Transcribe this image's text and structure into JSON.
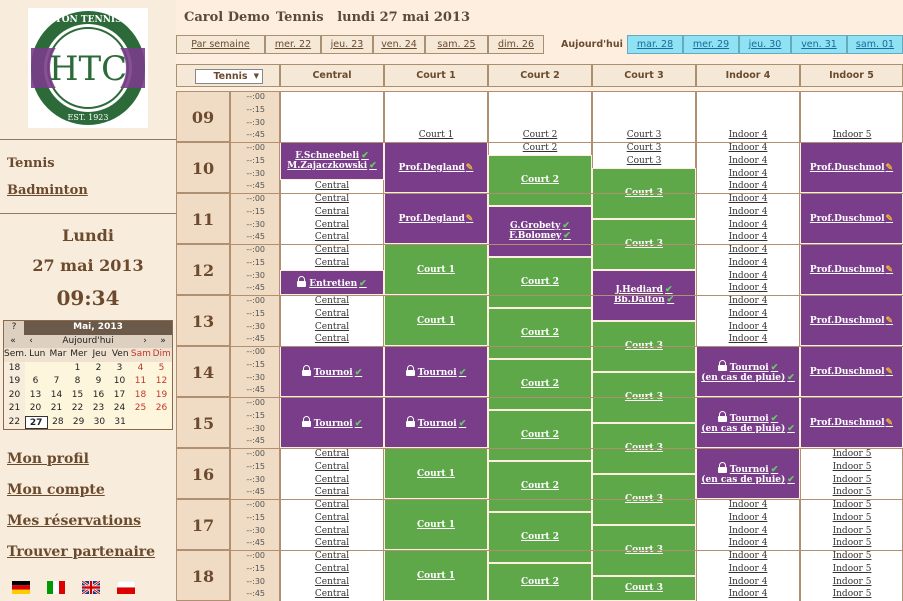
{
  "sidebar": {
    "logo": {
      "top": "HAMPTON TENNIS CLUB",
      "letters": "HTC",
      "est": "EST. 1923"
    },
    "sports": [
      "Tennis",
      "Badminton"
    ],
    "date": {
      "day": "Lundi",
      "full": "27 mai 2013",
      "time": "09:34"
    },
    "links": [
      "Mon profil",
      "Mon compte",
      "Mes réservations",
      "Trouver partenaire"
    ],
    "flags": [
      "german-flag-icon",
      "italian-flag-icon",
      "uk-flag-icon",
      "polish-flag-icon"
    ]
  },
  "calendar": {
    "help": "?",
    "title": "Mai, 2013",
    "nav": [
      "«",
      "‹",
      "Aujourd'hui",
      "›",
      "»"
    ],
    "headers": [
      "Sem.",
      "Lun",
      "Mar",
      "Mer",
      "Jeu",
      "Ven",
      "Sam",
      "Dim"
    ],
    "weeks": [
      [
        "18",
        "",
        "",
        "1",
        "2",
        "3",
        "4",
        "5"
      ],
      [
        "19",
        "6",
        "7",
        "8",
        "9",
        "10",
        "11",
        "12"
      ],
      [
        "20",
        "13",
        "14",
        "15",
        "16",
        "17",
        "18",
        "19"
      ],
      [
        "21",
        "20",
        "21",
        "22",
        "23",
        "24",
        "25",
        "26"
      ],
      [
        "22",
        "27",
        "28",
        "29",
        "30",
        "31",
        "",
        ""
      ]
    ],
    "today": "27"
  },
  "header": {
    "user": "Carol Demo",
    "sport_date": "Tennis   lundi 27 mai 2013"
  },
  "nav": {
    "week": "Par semaine",
    "past": [
      "mer. 22",
      "jeu. 23",
      "ven. 24",
      "sam. 25",
      "dim. 26"
    ],
    "today": "Aujourd'hui",
    "future": [
      "mar. 28",
      "mer. 29",
      "jeu. 30",
      "ven. 31",
      "sam. 01"
    ]
  },
  "columns": {
    "selector": "Tennis",
    "courts": [
      "Central",
      "Court 1",
      "Court 2",
      "Court 3",
      "Indoor 4",
      "Indoor 5"
    ]
  },
  "hours": [
    "09",
    "10",
    "11",
    "12",
    "13",
    "14",
    "15",
    "16",
    "17",
    "18"
  ],
  "quarters": [
    "--:00",
    "--:15",
    "--:30",
    "--:45"
  ],
  "bookings": {
    "schneebeli": "F.Schneebeli",
    "zajaczkowski": "M.Zajaczkowski",
    "degland": "Prof.Degland",
    "grobety": "G.Grobety",
    "bolomey": "F.Bolomey",
    "entretien": "Entretien",
    "hediard": "J.Hediard",
    "dalton": "Bb.Dalton",
    "duschmol": "Prof.Duschmol",
    "tournoi": "Tournoi",
    "pluie": "(en cas de pluie)"
  },
  "colors": {
    "booked": "#7a3d8a",
    "free_block": "#5fa84a",
    "future_tab": "#8fe2f3"
  }
}
